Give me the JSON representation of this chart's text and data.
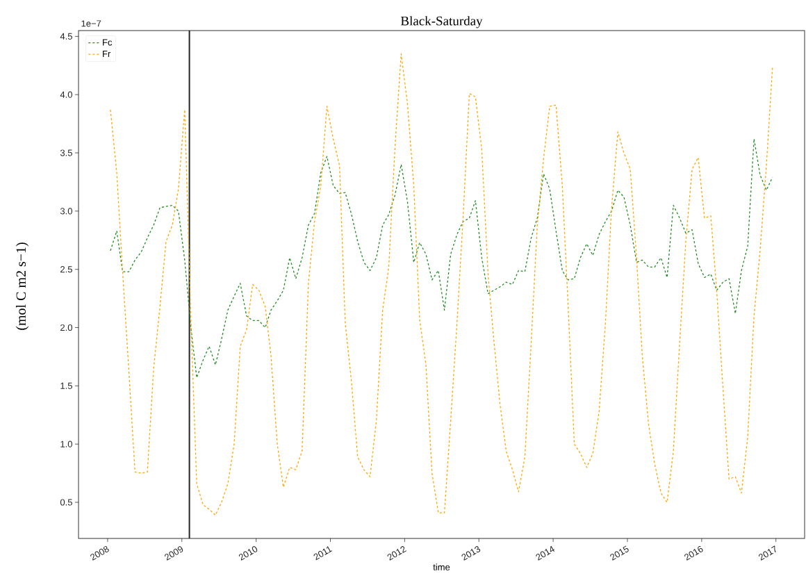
{
  "chart_data": {
    "type": "line",
    "title": "Black-Saturday",
    "xlabel": "time",
    "ylabel": "(mol C m2 s−1)",
    "annotations": [
      "1e−7"
    ],
    "x": [
      "2008-01-15",
      "2008-02-15",
      "2008-03-15",
      "2008-04-15",
      "2008-05-15",
      "2008-06-15",
      "2008-07-15",
      "2008-08-15",
      "2008-09-15",
      "2008-10-15",
      "2008-11-15",
      "2008-12-15",
      "2009-01-15",
      "2009-02-15",
      "2009-03-15",
      "2009-04-15",
      "2009-05-15",
      "2009-06-15",
      "2009-07-15",
      "2009-08-15",
      "2009-09-15",
      "2009-10-15",
      "2009-11-15",
      "2009-12-15",
      "2010-01-15",
      "2010-02-15",
      "2010-03-15",
      "2010-04-15",
      "2010-05-15",
      "2010-06-15",
      "2010-07-15",
      "2010-08-15",
      "2010-09-15",
      "2010-10-15",
      "2010-11-15",
      "2010-12-15",
      "2011-01-15",
      "2011-02-15",
      "2011-03-15",
      "2011-04-15",
      "2011-05-15",
      "2011-06-15",
      "2011-07-15",
      "2011-08-15",
      "2011-09-15",
      "2011-10-15",
      "2011-11-15",
      "2011-12-15",
      "2012-01-15",
      "2012-02-15",
      "2012-03-15",
      "2012-04-15",
      "2012-05-15",
      "2012-06-15",
      "2012-07-15",
      "2012-08-15",
      "2012-09-15",
      "2012-10-15",
      "2012-11-15",
      "2012-12-15",
      "2013-01-15",
      "2013-02-15",
      "2013-03-15",
      "2013-04-15",
      "2013-05-15",
      "2013-06-15",
      "2013-07-15",
      "2013-08-15",
      "2013-09-15",
      "2013-10-15",
      "2013-11-15",
      "2013-12-15",
      "2014-01-15",
      "2014-02-15",
      "2014-03-15",
      "2014-04-15",
      "2014-05-15",
      "2014-06-15",
      "2014-07-15",
      "2014-08-15",
      "2014-09-15",
      "2014-10-15",
      "2014-11-15",
      "2014-12-15",
      "2015-01-15",
      "2015-02-15",
      "2015-03-15",
      "2015-04-15",
      "2015-05-15",
      "2015-06-15",
      "2015-07-15",
      "2015-08-15",
      "2015-09-15",
      "2015-10-15",
      "2015-11-15",
      "2015-12-15",
      "2016-01-15",
      "2016-02-15",
      "2016-03-15",
      "2016-04-15",
      "2016-05-15",
      "2016-06-15",
      "2016-07-15",
      "2016-08-15",
      "2016-09-15",
      "2016-10-15",
      "2016-11-15",
      "2016-12-15"
    ],
    "series": [
      {
        "name": "Fc",
        "color": "#228b22",
        "values": [
          2.66,
          2.83,
          2.48,
          2.48,
          2.58,
          2.65,
          2.77,
          2.88,
          3.03,
          3.04,
          3.05,
          3.0,
          2.58,
          1.99,
          1.57,
          1.72,
          1.84,
          1.68,
          1.9,
          2.15,
          2.27,
          2.38,
          2.1,
          2.06,
          2.06,
          2.0,
          2.15,
          2.23,
          2.32,
          2.6,
          2.42,
          2.6,
          2.88,
          2.98,
          3.33,
          3.47,
          3.22,
          3.15,
          3.16,
          2.97,
          2.74,
          2.56,
          2.49,
          2.6,
          2.88,
          2.97,
          3.14,
          3.4,
          3.08,
          2.56,
          2.73,
          2.63,
          2.41,
          2.49,
          2.15,
          2.63,
          2.8,
          2.91,
          2.94,
          3.09,
          2.6,
          2.29,
          2.32,
          2.35,
          2.39,
          2.37,
          2.49,
          2.48,
          2.77,
          2.94,
          3.32,
          3.19,
          2.83,
          2.49,
          2.41,
          2.42,
          2.6,
          2.72,
          2.62,
          2.8,
          2.91,
          3.0,
          3.18,
          3.12,
          2.88,
          2.56,
          2.58,
          2.52,
          2.52,
          2.6,
          2.43,
          3.05,
          2.94,
          2.81,
          2.84,
          2.55,
          2.43,
          2.46,
          2.32,
          2.39,
          2.42,
          2.12,
          2.49,
          2.7,
          3.62,
          3.31,
          3.18,
          3.29
        ]
      },
      {
        "name": "Fr",
        "color": "#ffa500",
        "values": [
          3.87,
          3.33,
          2.48,
          1.62,
          0.76,
          0.75,
          0.76,
          1.65,
          2.18,
          2.74,
          2.88,
          3.19,
          3.87,
          2.04,
          0.66,
          0.48,
          0.44,
          0.39,
          0.5,
          0.66,
          1.0,
          1.84,
          1.98,
          2.37,
          2.32,
          2.18,
          1.76,
          1.0,
          0.63,
          0.8,
          0.78,
          0.94,
          2.38,
          2.91,
          3.22,
          3.9,
          3.62,
          3.39,
          2.04,
          1.53,
          0.89,
          0.78,
          0.72,
          1.2,
          2.15,
          2.52,
          3.56,
          4.35,
          3.92,
          3.22,
          2.07,
          1.68,
          0.75,
          0.41,
          0.41,
          1.2,
          2.04,
          2.94,
          4.01,
          3.98,
          3.53,
          2.46,
          1.9,
          1.34,
          0.94,
          0.78,
          0.59,
          0.89,
          1.87,
          2.88,
          3.45,
          3.9,
          3.91,
          3.22,
          2.21,
          1.0,
          0.92,
          0.8,
          0.92,
          1.28,
          2.04,
          3.02,
          3.68,
          3.5,
          3.36,
          2.6,
          1.76,
          1.17,
          0.83,
          0.58,
          0.5,
          0.94,
          1.87,
          2.74,
          3.36,
          3.46,
          2.94,
          2.96,
          2.32,
          1.48,
          0.7,
          0.72,
          0.58,
          1.06,
          2.1,
          2.66,
          3.39,
          4.23
        ]
      }
    ],
    "xlim": [
      "2007-08-11",
      "2017-05-22"
    ],
    "xticks": [
      {
        "value": "2008",
        "label": "2008"
      },
      {
        "value": "2009",
        "label": "2009"
      },
      {
        "value": "2010",
        "label": "2010"
      },
      {
        "value": "2011",
        "label": "2011"
      },
      {
        "value": "2012",
        "label": "2012"
      },
      {
        "value": "2013",
        "label": "2013"
      },
      {
        "value": "2014",
        "label": "2014"
      },
      {
        "value": "2015",
        "label": "2015"
      },
      {
        "value": "2016",
        "label": "2016"
      },
      {
        "value": "2017",
        "label": "2017"
      }
    ],
    "ylim": [
      0.19,
      4.55
    ],
    "yticks": [
      0.5,
      {
        "value": 1,
        "label": "1.0"
      },
      1.5,
      {
        "value": 2,
        "label": "2.0"
      },
      2.5,
      {
        "value": 3,
        "label": "3.0"
      },
      3.5,
      {
        "value": 4,
        "label": "4.0"
      },
      4.5
    ],
    "ref_lines": [
      {
        "axis": "x",
        "value": "2009-02-07",
        "color": "#222222"
      }
    ],
    "legend": "top left",
    "marker": "none",
    "line_style": "dashed"
  }
}
